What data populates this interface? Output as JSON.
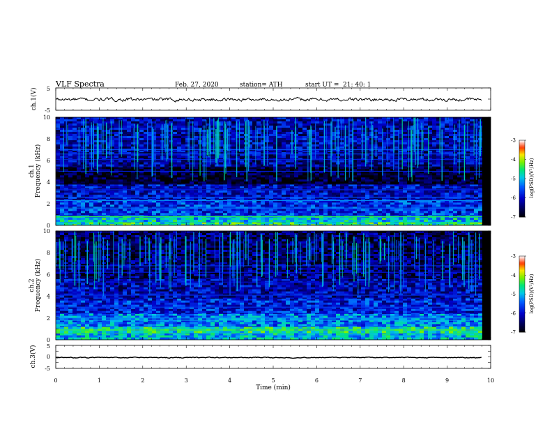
{
  "header": {
    "title": "VLF  Spectra",
    "date": "Feb. 27, 2020",
    "station": "station= ATH",
    "start_label": "start  UT  =",
    "start_time": "21: 40: 1"
  },
  "chart_data": [
    {
      "type": "line",
      "panel": "ch1-waveform",
      "ylabel": "ch.1(V)",
      "ylim": [
        -5,
        5
      ],
      "yticks": [
        "5",
        "-5"
      ],
      "xlim": [
        0,
        10
      ],
      "signal": {
        "x_end": 9.8,
        "mean": -0.2,
        "amplitude": 0.6
      },
      "colors": {
        "line": "#000000"
      }
    },
    {
      "type": "heatmap",
      "panel": "ch1-spectrogram",
      "ylabel_line1": "ch.1",
      "ylabel_line2": "Frequency  (kHz)",
      "ylim": [
        0,
        10
      ],
      "yticks": [
        "0",
        "2",
        "4",
        "6",
        "8",
        "10"
      ],
      "xlim": [
        0,
        10
      ],
      "x_end": 9.8,
      "colorbar": {
        "label": "log(PSD)(V²/Hz)",
        "range": [
          -7,
          -3
        ],
        "ticks": [
          "-3",
          "-4",
          "-5",
          "-6",
          "-7"
        ]
      },
      "bands": [
        {
          "f0": 0.0,
          "f1": 0.3,
          "level": -4.6
        },
        {
          "f0": 0.3,
          "f1": 0.9,
          "level": -4.9
        },
        {
          "f0": 0.9,
          "f1": 2.3,
          "level": -5.7
        },
        {
          "f0": 2.3,
          "f1": 3.8,
          "level": -6.0
        },
        {
          "f0": 3.8,
          "f1": 5.4,
          "level": -6.8
        },
        {
          "f0": 5.4,
          "f1": 6.8,
          "level": -6.2
        },
        {
          "f0": 6.8,
          "f1": 10.0,
          "level": -6.1
        }
      ],
      "lines": [
        {
          "f": 0.8,
          "level": -4.4
        },
        {
          "f": 1.6,
          "level": -5.3
        },
        {
          "f": 2.3,
          "level": -5.2
        },
        {
          "f": 2.6,
          "level": -5.4
        },
        {
          "f": 3.3,
          "level": -5.8
        },
        {
          "f": 5.0,
          "level": -5.8
        },
        {
          "f": 6.1,
          "level": -5.8
        },
        {
          "f": 6.6,
          "level": -5.6
        },
        {
          "f": 7.0,
          "level": -5.5
        }
      ]
    },
    {
      "type": "heatmap",
      "panel": "ch2-spectrogram",
      "ylabel_line1": "ch.2",
      "ylabel_line2": "Frequency  (kHz)",
      "ylim": [
        0,
        10
      ],
      "yticks": [
        "0",
        "2",
        "4",
        "6",
        "8",
        "10"
      ],
      "xlim": [
        0,
        10
      ],
      "x_end": 9.8,
      "colorbar": {
        "label": "log(PSD)(V²/Hz)",
        "range": [
          -7,
          -3
        ],
        "ticks": [
          "-3",
          "-4",
          "-5",
          "-6",
          "-7"
        ]
      },
      "bands": [
        {
          "f0": 0.0,
          "f1": 0.6,
          "level": -5.0
        },
        {
          "f0": 0.6,
          "f1": 1.2,
          "level": -4.7
        },
        {
          "f0": 1.2,
          "f1": 2.4,
          "level": -5.3
        },
        {
          "f0": 2.4,
          "f1": 3.8,
          "level": -5.8
        },
        {
          "f0": 3.8,
          "f1": 5.6,
          "level": -6.1
        },
        {
          "f0": 5.6,
          "f1": 7.0,
          "level": -6.4
        },
        {
          "f0": 7.0,
          "f1": 10.0,
          "level": -6.5
        }
      ],
      "lines": [
        {
          "f": 0.9,
          "level": -4.3
        },
        {
          "f": 1.8,
          "level": -5.0
        },
        {
          "f": 2.0,
          "level": -5.1
        },
        {
          "f": 3.0,
          "level": -5.6
        },
        {
          "f": 4.1,
          "level": -5.7
        },
        {
          "f": 5.3,
          "level": -5.9
        },
        {
          "f": 6.2,
          "level": -5.9
        },
        {
          "f": 6.8,
          "level": -5.7
        }
      ]
    },
    {
      "type": "line",
      "panel": "ch3-waveform",
      "ylabel": "ch.3(V)",
      "xlabel": "Time  (min)",
      "ylim": [
        -5,
        5
      ],
      "yticks": [
        "5",
        "0",
        "-5"
      ],
      "xlim": [
        0,
        10
      ],
      "xticks": [
        "0",
        "1",
        "2",
        "3",
        "4",
        "5",
        "6",
        "7",
        "8",
        "9",
        "10"
      ],
      "signal": {
        "x_end": 9.8,
        "mean": -0.3,
        "amplitude": 0.15
      },
      "colors": {
        "line": "#000000"
      }
    }
  ]
}
